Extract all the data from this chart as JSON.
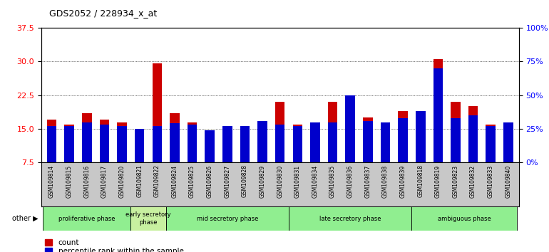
{
  "title": "GDS2052 / 228934_x_at",
  "samples": [
    "GSM109814",
    "GSM109815",
    "GSM109816",
    "GSM109817",
    "GSM109820",
    "GSM109821",
    "GSM109822",
    "GSM109824",
    "GSM109825",
    "GSM109826",
    "GSM109827",
    "GSM109828",
    "GSM109829",
    "GSM109830",
    "GSM109831",
    "GSM109834",
    "GSM109835",
    "GSM109836",
    "GSM109837",
    "GSM109838",
    "GSM109839",
    "GSM109818",
    "GSM109819",
    "GSM109823",
    "GSM109832",
    "GSM109833",
    "GSM109840"
  ],
  "count_values": [
    17.0,
    16.0,
    18.5,
    17.0,
    16.5,
    15.0,
    29.5,
    18.5,
    16.5,
    14.0,
    15.2,
    15.0,
    16.5,
    21.0,
    16.0,
    16.5,
    21.0,
    22.5,
    17.5,
    14.0,
    19.0,
    18.0,
    30.5,
    21.0,
    20.0,
    16.0,
    16.0
  ],
  "percentile_values": [
    27,
    27,
    30,
    28,
    27,
    25,
    27,
    29,
    28,
    24,
    27,
    27,
    31,
    28,
    27,
    30,
    30,
    50,
    31,
    30,
    33,
    38,
    70,
    33,
    35,
    27,
    30
  ],
  "phases": [
    {
      "label": "proliferative phase",
      "start": 0,
      "end": 5,
      "color": "#90ee90"
    },
    {
      "label": "early secretory\nphase",
      "start": 5,
      "end": 7,
      "color": "#c8f0a0"
    },
    {
      "label": "mid secretory phase",
      "start": 7,
      "end": 14,
      "color": "#90ee90"
    },
    {
      "label": "late secretory phase",
      "start": 14,
      "end": 21,
      "color": "#90ee90"
    },
    {
      "label": "ambiguous phase",
      "start": 21,
      "end": 27,
      "color": "#90ee90"
    }
  ],
  "ylim_left": [
    7.5,
    37.5
  ],
  "ylim_right": [
    0,
    100
  ],
  "yticks_left": [
    7.5,
    15.0,
    22.5,
    30.0,
    37.5
  ],
  "yticks_right": [
    0,
    25,
    50,
    75,
    100
  ],
  "bar_color_count": "#cc0000",
  "bar_color_pct": "#0000cc",
  "bar_width": 0.55,
  "legend_count": "count",
  "legend_pct": "percentile rank within the sample",
  "other_label": "other"
}
